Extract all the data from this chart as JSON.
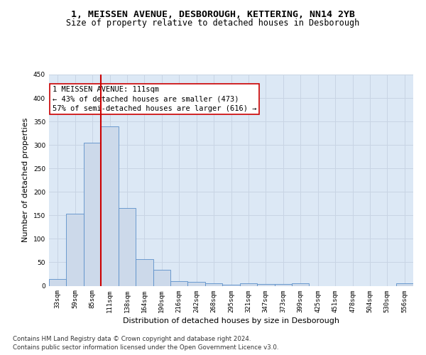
{
  "title": "1, MEISSEN AVENUE, DESBOROUGH, KETTERING, NN14 2YB",
  "subtitle": "Size of property relative to detached houses in Desborough",
  "xlabel": "Distribution of detached houses by size in Desborough",
  "ylabel": "Number of detached properties",
  "bar_labels": [
    "33sqm",
    "59sqm",
    "85sqm",
    "111sqm",
    "138sqm",
    "164sqm",
    "190sqm",
    "216sqm",
    "242sqm",
    "268sqm",
    "295sqm",
    "321sqm",
    "347sqm",
    "373sqm",
    "399sqm",
    "425sqm",
    "451sqm",
    "478sqm",
    "504sqm",
    "530sqm",
    "556sqm"
  ],
  "bar_values": [
    15,
    153,
    305,
    340,
    165,
    57,
    34,
    10,
    9,
    6,
    3,
    5,
    4,
    4,
    5,
    0,
    0,
    0,
    0,
    0,
    5
  ],
  "bar_color": "#ccd9ea",
  "bar_edge_color": "#5b8fc9",
  "vline_x_index": 3,
  "vline_color": "#cc0000",
  "annotation_lines": [
    "1 MEISSEN AVENUE: 111sqm",
    "← 43% of detached houses are smaller (473)",
    "57% of semi-detached houses are larger (616) →"
  ],
  "annotation_box_edgecolor": "#cc0000",
  "annotation_box_facecolor": "#ffffff",
  "ylim": [
    0,
    450
  ],
  "yticks": [
    0,
    50,
    100,
    150,
    200,
    250,
    300,
    350,
    400,
    450
  ],
  "grid_color": "#c8d4e4",
  "bg_color": "#dce8f5",
  "footer_line1": "Contains HM Land Registry data © Crown copyright and database right 2024.",
  "footer_line2": "Contains public sector information licensed under the Open Government Licence v3.0.",
  "title_fontsize": 9.5,
  "subtitle_fontsize": 8.5,
  "tick_fontsize": 6.5,
  "ylabel_fontsize": 8,
  "xlabel_fontsize": 8,
  "annotation_fontsize": 7.5,
  "footer_fontsize": 6.2
}
